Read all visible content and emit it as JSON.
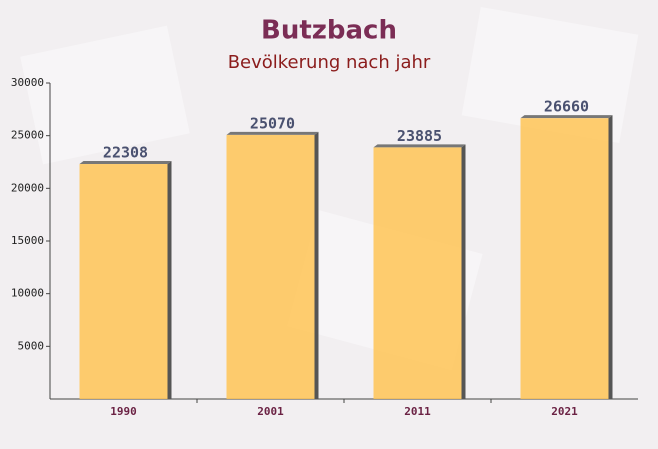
{
  "chart_data": {
    "type": "bar",
    "title": "Butzbach",
    "subtitle": "Bevölkerung nach jahr",
    "categories": [
      "1990",
      "2001",
      "2011",
      "2021"
    ],
    "values": [
      22308,
      25070,
      23885,
      26660
    ],
    "color": "#ffc456",
    "ylim": [
      0,
      30000
    ],
    "yticks": [
      5000,
      10000,
      15000,
      20000,
      25000,
      30000
    ],
    "grid": false
  }
}
